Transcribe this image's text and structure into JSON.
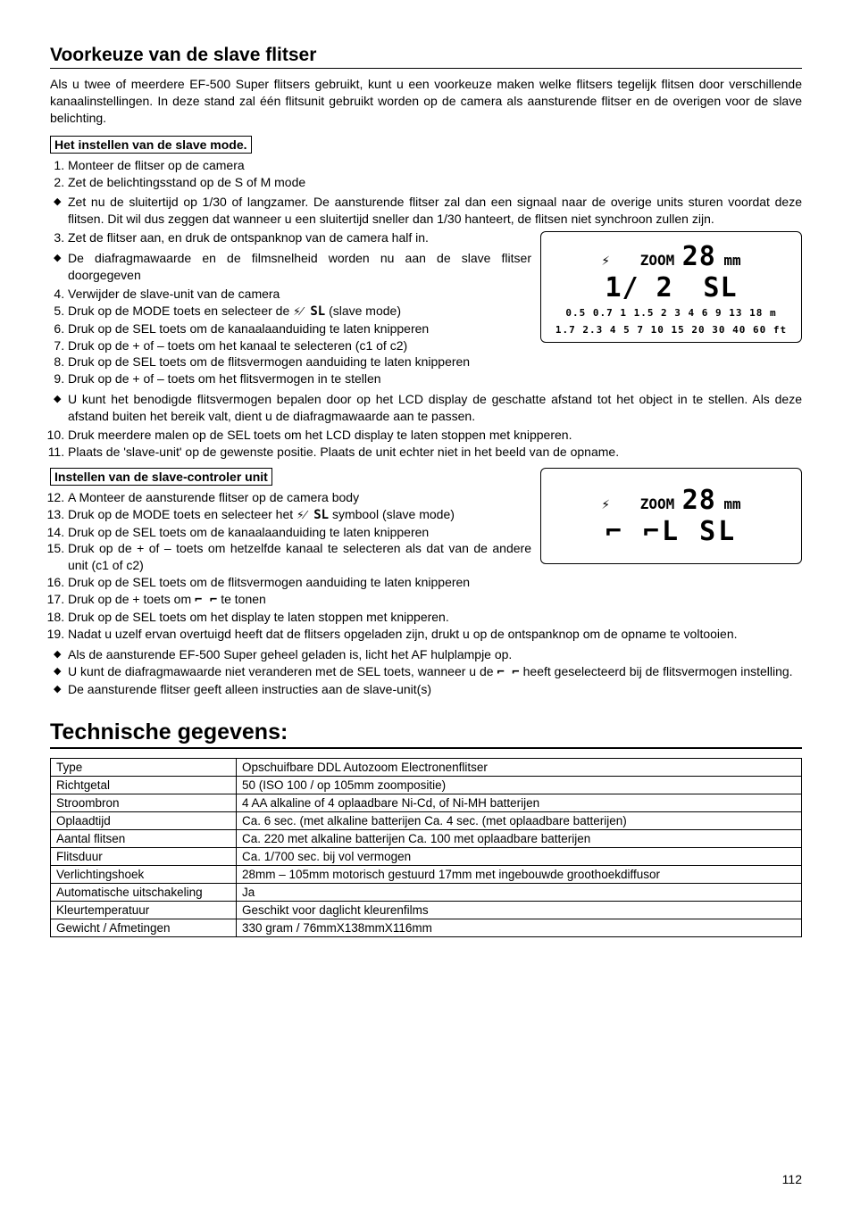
{
  "section1": {
    "title": "Voorkeuze van de slave flitser",
    "intro": "Als u twee of meerdere EF-500 Super flitsers gebruikt, kunt u een voorkeuze maken welke flitsers tegelijk flitsen door verschillende kanaalinstellingen. In deze stand zal één flitsunit gebruikt worden op de camera als aansturende flitser en de overigen voor de slave belichting.",
    "subhead1": "Het instellen van de slave mode.",
    "steps_a": [
      "Monteer de flitser op de camera",
      "Zet de belichtingsstand op de S of M mode"
    ],
    "bullets_a": [
      "Zet nu de sluitertijd op 1/30 of langzamer. De aansturende flitser zal dan een signaal naar de overige units sturen voordat deze flitsen. Dit wil dus zeggen dat wanneer u een sluitertijd  sneller dan 1/30 hanteert, de flitsen niet synchroon zullen zijn."
    ],
    "steps_b": [
      "Zet de flitser aan, en druk de ontspanknop van de camera half in."
    ],
    "bullets_b": [
      "De diafragmawaarde en de filmsnelheid worden nu aan de slave flitser doorgegeven"
    ],
    "steps_c": [
      "Verwijder de slave-unit van de camera",
      "",
      "Druk op de SEL toets om de kanaalaanduiding te laten knipperen",
      "Druk op de + of – toets om het kanaal te selecteren (c1 of c2)",
      "Druk op de SEL toets om de flitsvermogen aanduiding te laten knipperen",
      "Druk op de + of – toets om het flitsvermogen in te stellen"
    ],
    "step5_prefix": "Druk op de MODE toets en selecteer de ",
    "step5_icon": "⚡⁄ SL",
    "step5_suffix": " (slave mode)",
    "bullets_c": [
      "U kunt het benodigde flitsvermogen bepalen door op het LCD display de geschatte afstand tot het object in te stellen. Als deze afstand buiten het bereik valt, dient u de diafragmawaarde aan te passen."
    ],
    "steps_d": [
      "Druk meerdere malen op de SEL toets om het LCD display te laten stoppen met knipperen.",
      "Plaats de 'slave-unit' op de gewenste positie. Plaats de unit echter niet in het beeld van de opname."
    ],
    "subhead2": "Instellen van de slave-controler unit",
    "steps_e": [
      "A Monteer de aansturende flitser op de camera body",
      "",
      "Druk op de SEL toets om de kanaalaanduiding te laten knipperen",
      "Druk op de + of – toets om hetzelfde kanaal te selecteren als dat van de andere unit (c1 of c2)",
      "Druk op de SEL toets om de flitsvermogen aanduiding te laten knipperen",
      "",
      "Druk op de SEL toets om het display te laten stoppen met knipperen.",
      "Nadat u uzelf ervan overtuigd heeft dat de flitsers opgeladen zijn, drukt u op de ontspanknop om de opname te voltooien."
    ],
    "step13_prefix": "Druk op de MODE toets en selecteer het ",
    "step13_icon": "⚡⁄ SL",
    "step13_suffix": " symbool (slave mode)",
    "step17_prefix": "Druk op de + toets om ",
    "step17_icon": "⌐ ⌐",
    "step17_suffix": " te tonen",
    "bullets_d_1": "Als de aansturende EF-500 Super geheel geladen is, licht het AF hulplampje op.",
    "bullets_d_2a": "U kunt de diafragmawaarde niet veranderen met de SEL toets, wanneer u de ",
    "bullets_d_2icon": "⌐ ⌐",
    "bullets_d_2b": " heeft geselecteerd bij de flitsvermogen instelling.",
    "bullets_d_3": "De aansturende flitser geeft alleen instructies aan de slave-unit(s)"
  },
  "lcd1": {
    "icon": "⚡",
    "zoom_label": "ZOOM",
    "zoom_val": "28",
    "zoom_unit": "mm",
    "f_label": "1/ 2",
    "mode": "SL",
    "scale1": "0.5 0.7 1 1.5 2 3 4 6 9 13 18 m",
    "scale2": "1.7 2.3 4 5 7 10 15 20 30 40 60 ft"
  },
  "lcd2": {
    "icon": "⚡",
    "zoom_label": "ZOOM",
    "zoom_val": "28",
    "zoom_unit": "mm",
    "line2": "⌐ ⌐L SL"
  },
  "section2": {
    "title": "Technische gegevens:",
    "rows": [
      [
        "Type",
        "Opschuifbare DDL Autozoom Electronenflitser"
      ],
      [
        "Richtgetal",
        "50 (ISO 100 / op 105mm zoompositie)"
      ],
      [
        "Stroombron",
        "4 AA alkaline of 4 oplaadbare Ni-Cd, of Ni-MH batterijen"
      ],
      [
        "Oplaadtijd",
        "Ca. 6 sec. (met alkaline batterijen  Ca. 4 sec. (met oplaadbare batterijen)"
      ],
      [
        "Aantal flitsen",
        "Ca. 220 met alkaline batterijen  Ca. 100 met oplaadbare batterijen"
      ],
      [
        "Flitsduur",
        "Ca. 1/700 sec. bij vol vermogen"
      ],
      [
        "Verlichtingshoek",
        "28mm – 105mm motorisch gestuurd 17mm met ingebouwde groothoekdiffusor"
      ],
      [
        "Automatische uitschakeling",
        "Ja"
      ],
      [
        "Kleurtemperatuur",
        "Geschikt voor daglicht kleurenfilms"
      ],
      [
        "Gewicht / Afmetingen",
        "330 gram / 76mmX138mmX116mm"
      ]
    ]
  },
  "page_number": "112"
}
